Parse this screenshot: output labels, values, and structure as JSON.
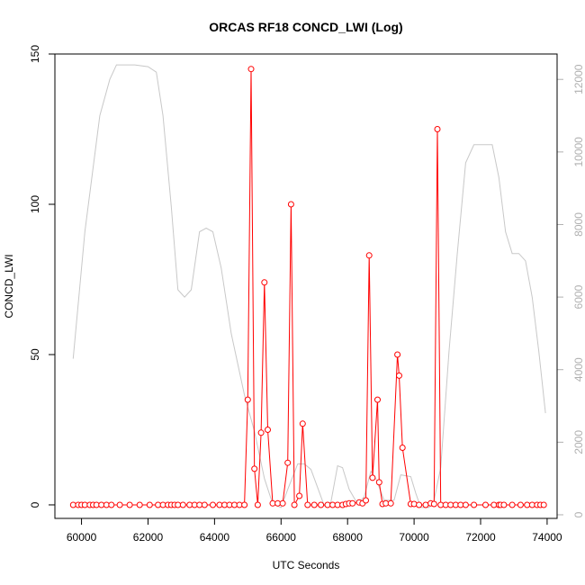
{
  "chart_data": {
    "type": "line",
    "title": "ORCAS RF18 CONCD_LWI (Log)",
    "xlabel": "UTC Seconds",
    "ylabel": "CONCD_LWI",
    "xlim": [
      59200,
      74300
    ],
    "ylim": [
      -4.5,
      150
    ],
    "y2lim": [
      -100,
      12700
    ],
    "x_ticks": [
      60000,
      62000,
      64000,
      66000,
      68000,
      70000,
      72000,
      74000
    ],
    "y_ticks": [
      0,
      50,
      100,
      150
    ],
    "y2_ticks": [
      0,
      2000,
      4000,
      6000,
      8000,
      10000,
      12000
    ],
    "grid": false,
    "legend": "none",
    "series": [
      {
        "axis": "left",
        "color": "#ff0000",
        "style": "line+points",
        "points": [
          [
            59750,
            0
          ],
          [
            59900,
            0
          ],
          [
            60000,
            0
          ],
          [
            60100,
            0
          ],
          [
            60250,
            0
          ],
          [
            60350,
            0
          ],
          [
            60450,
            0
          ],
          [
            60600,
            0
          ],
          [
            60750,
            0
          ],
          [
            60900,
            0
          ],
          [
            61150,
            0
          ],
          [
            61450,
            0
          ],
          [
            61750,
            0
          ],
          [
            62050,
            0
          ],
          [
            62300,
            0
          ],
          [
            62450,
            0
          ],
          [
            62600,
            0
          ],
          [
            62700,
            0
          ],
          [
            62800,
            0
          ],
          [
            62900,
            0
          ],
          [
            63050,
            0
          ],
          [
            63250,
            0
          ],
          [
            63400,
            0
          ],
          [
            63550,
            0
          ],
          [
            63700,
            0
          ],
          [
            63950,
            0
          ],
          [
            64150,
            0
          ],
          [
            64300,
            0
          ],
          [
            64450,
            0
          ],
          [
            64600,
            0
          ],
          [
            64750,
            0
          ],
          [
            64900,
            0
          ],
          [
            65000,
            35
          ],
          [
            65100,
            145
          ],
          [
            65200,
            12
          ],
          [
            65300,
            0
          ],
          [
            65400,
            24
          ],
          [
            65500,
            74
          ],
          [
            65600,
            25
          ],
          [
            65750,
            0.5
          ],
          [
            65900,
            0.5
          ],
          [
            66050,
            0.5
          ],
          [
            66200,
            14
          ],
          [
            66300,
            100
          ],
          [
            66400,
            0
          ],
          [
            66550,
            3
          ],
          [
            66650,
            27
          ],
          [
            66800,
            0
          ],
          [
            67000,
            0
          ],
          [
            67200,
            0
          ],
          [
            67400,
            0
          ],
          [
            67550,
            0
          ],
          [
            67700,
            0
          ],
          [
            67850,
            0
          ],
          [
            67950,
            0.3
          ],
          [
            68050,
            0.5
          ],
          [
            68150,
            0.5
          ],
          [
            68350,
            0.8
          ],
          [
            68450,
            0.5
          ],
          [
            68550,
            1.5
          ],
          [
            68650,
            83
          ],
          [
            68750,
            9
          ],
          [
            68900,
            35
          ],
          [
            68950,
            7.5
          ],
          [
            69050,
            0.3
          ],
          [
            69150,
            0.5
          ],
          [
            69300,
            0.5
          ],
          [
            69500,
            50
          ],
          [
            69550,
            43
          ],
          [
            69650,
            19
          ],
          [
            69900,
            0.3
          ],
          [
            70000,
            0.3
          ],
          [
            70150,
            0
          ],
          [
            70350,
            0
          ],
          [
            70500,
            0.5
          ],
          [
            70600,
            0.3
          ],
          [
            70700,
            125
          ],
          [
            70800,
            0
          ],
          [
            70950,
            0
          ],
          [
            71100,
            0
          ],
          [
            71250,
            0
          ],
          [
            71400,
            0
          ],
          [
            71550,
            0
          ],
          [
            71800,
            0
          ],
          [
            72150,
            0
          ],
          [
            72400,
            0
          ],
          [
            72550,
            0
          ],
          [
            72600,
            0
          ],
          [
            72700,
            0
          ],
          [
            72950,
            0
          ],
          [
            73200,
            0
          ],
          [
            73400,
            0
          ],
          [
            73550,
            0
          ],
          [
            73700,
            0
          ],
          [
            73800,
            0
          ],
          [
            73900,
            0
          ]
        ]
      },
      {
        "axis": "right",
        "color": "#c8c8c8",
        "style": "line",
        "points": [
          [
            59750,
            4300
          ],
          [
            60100,
            7800
          ],
          [
            60550,
            11000
          ],
          [
            60850,
            12000
          ],
          [
            61050,
            12400
          ],
          [
            61600,
            12400
          ],
          [
            62000,
            12350
          ],
          [
            62250,
            12200
          ],
          [
            62450,
            11000
          ],
          [
            62700,
            8500
          ],
          [
            62900,
            6200
          ],
          [
            63100,
            6000
          ],
          [
            63300,
            6200
          ],
          [
            63550,
            7800
          ],
          [
            63750,
            7900
          ],
          [
            63950,
            7800
          ],
          [
            64200,
            6800
          ],
          [
            64500,
            5000
          ],
          [
            64900,
            3300
          ],
          [
            65200,
            2300
          ],
          [
            65500,
            1000
          ],
          [
            65750,
            300
          ],
          [
            66000,
            200
          ],
          [
            66200,
            700
          ],
          [
            66500,
            1400
          ],
          [
            66700,
            1400
          ],
          [
            66900,
            1250
          ],
          [
            67100,
            750
          ],
          [
            67300,
            250
          ],
          [
            67500,
            350
          ],
          [
            67700,
            1350
          ],
          [
            67850,
            1300
          ],
          [
            68050,
            700
          ],
          [
            68300,
            300
          ],
          [
            68500,
            500
          ],
          [
            68700,
            1200
          ],
          [
            68850,
            1000
          ],
          [
            69100,
            400
          ],
          [
            69400,
            400
          ],
          [
            69600,
            1100
          ],
          [
            69900,
            1050
          ],
          [
            70050,
            600
          ],
          [
            70200,
            200
          ],
          [
            70450,
            200
          ],
          [
            70600,
            400
          ],
          [
            70800,
            1300
          ],
          [
            71050,
            4500
          ],
          [
            71300,
            7200
          ],
          [
            71550,
            9700
          ],
          [
            71800,
            10200
          ],
          [
            72050,
            10200
          ],
          [
            72350,
            10200
          ],
          [
            72550,
            9300
          ],
          [
            72750,
            7800
          ],
          [
            72950,
            7200
          ],
          [
            73150,
            7200
          ],
          [
            73350,
            7000
          ],
          [
            73550,
            6000
          ],
          [
            73750,
            4500
          ],
          [
            73950,
            2800
          ]
        ]
      }
    ]
  }
}
